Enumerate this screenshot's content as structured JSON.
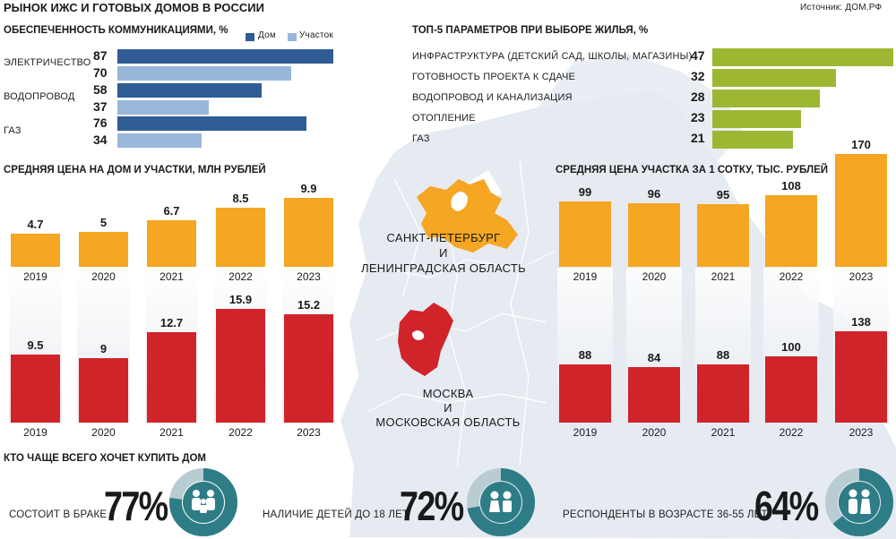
{
  "header": {
    "title": "РЫНОК ИЖС И ГОТОВЫХ ДОМОВ В РОССИИ",
    "source": "Источник: ДОМ.РФ"
  },
  "colors": {
    "house": "#2f5c94",
    "plot": "#98b7d9",
    "green": "#9cb832",
    "orange": "#f5a623",
    "red": "#d1232a",
    "teal": "#2e7d86",
    "teal_light": "#b9ccd1"
  },
  "map": {
    "spb_label_1": "САНКТ-ПЕТЕРБУРГ",
    "spb_label_2": "И",
    "spb_label_3": "ЛЕНИНГРАДСКАЯ ОБЛАСТЬ",
    "msk_label_1": "МОСКВА",
    "msk_label_2": "И",
    "msk_label_3": "МОСКОВСКАЯ ОБЛАСТЬ"
  },
  "utilities": {
    "title": "ОБЕСПЕЧЕННОСТЬ КОММУНИКАЦИЯМИ, %",
    "legend_house": "Дом",
    "legend_plot": "Участок",
    "groups": [
      {
        "label": "ЭЛЕКТРИЧЕСТВО",
        "house": 87,
        "plot": 70,
        "house_text": "87",
        "plot_text": "70"
      },
      {
        "label": "ВОДОПРОВОД",
        "house": 58,
        "plot": 37,
        "house_text": "58",
        "plot_text": "37"
      },
      {
        "label": "ГАЗ",
        "house": 76,
        "plot": 34,
        "house_text": "76",
        "plot_text": "34"
      }
    ]
  },
  "top5": {
    "title": "ТОП-5 ПАРАМЕТРОВ ПРИ ВЫБОРЕ ЖИЛЬЯ, %",
    "items": [
      {
        "label": "ИНФРАСТРУКТУРА (ДЕТСКИЙ САД, ШКОЛЫ, МАГАЗИНЫ)",
        "value": 47,
        "text": "47"
      },
      {
        "label": "ГОТОВНОСТЬ ПРОЕКТА К СДАЧЕ",
        "value": 32,
        "text": "32"
      },
      {
        "label": "ВОДОПРОВОД И КАНАЛИЗАЦИЯ",
        "value": 28,
        "text": "28"
      },
      {
        "label": "ОТОПЛЕНИЕ",
        "value": 23,
        "text": "23"
      },
      {
        "label": "ГАЗ",
        "value": 21,
        "text": "21"
      }
    ]
  },
  "price_house": {
    "title": "СРЕДНЯЯ ЦЕНА НА ДОМ И УЧАСТКИ, МЛН РУБЛЕЙ",
    "years": [
      "2019",
      "2020",
      "2021",
      "2022",
      "2023"
    ],
    "spb_values": [
      4.7,
      5,
      6.7,
      8.5,
      9.9
    ],
    "spb_texts": [
      "4.7",
      "5",
      "6.7",
      "8.5",
      "9.9"
    ],
    "msk_values": [
      9.5,
      9,
      12.7,
      15.9,
      15.2
    ],
    "msk_texts": [
      "9.5",
      "9",
      "12.7",
      "15.9",
      "15.2"
    ]
  },
  "price_plot": {
    "title": "СРЕДНЯЯ ЦЕНА УЧАСТКА ЗА 1 СОТКУ, ТЫС. РУБЛЕЙ",
    "years": [
      "2019",
      "2020",
      "2021",
      "2022",
      "2023"
    ],
    "spb_values": [
      99,
      96,
      95,
      108,
      170
    ],
    "spb_texts": [
      "99",
      "96",
      "95",
      "108",
      "170"
    ],
    "msk_values": [
      88,
      84,
      88,
      100,
      138
    ],
    "msk_texts": [
      "88",
      "84",
      "88",
      "100",
      "138"
    ]
  },
  "buyers": {
    "title": "КТО ЧАЩЕ ВСЕГО ХОЧЕТ КУПИТЬ ДОМ",
    "items": [
      {
        "label": "СОСТОИТ В БРАКЕ",
        "value": 77,
        "text": "77%",
        "icon": "family-icon"
      },
      {
        "label": "НАЛИЧИЕ ДЕТЕЙ ДО 18 ЛЕТ",
        "value": 72,
        "text": "72%",
        "icon": "children-icon"
      },
      {
        "label": "РЕСПОНДЕНТЫ В ВОЗРАСТЕ 36-55 ЛЕТ",
        "value": 64,
        "text": "64%",
        "icon": "couple-icon"
      }
    ]
  },
  "chart_data": [
    {
      "type": "bar",
      "title": "ОБЕСПЕЧЕННОСТЬ КОММУНИКАЦИЯМИ, %",
      "orientation": "horizontal",
      "categories": [
        "ЭЛЕКТРИЧЕСТВО",
        "ВОДОПРОВОД",
        "ГАЗ"
      ],
      "series": [
        {
          "name": "Дом",
          "values": [
            87,
            58,
            76
          ]
        },
        {
          "name": "Участок",
          "values": [
            70,
            37,
            34
          ]
        }
      ],
      "legend": "top-right"
    },
    {
      "type": "bar",
      "title": "ТОП-5 ПАРАМЕТРОВ ПРИ ВЫБОРЕ ЖИЛЬЯ, %",
      "orientation": "horizontal",
      "categories": [
        "ИНФРАСТРУКТУРА (ДЕТСКИЙ САД, ШКОЛЫ, МАГАЗИНЫ)",
        "ГОТОВНОСТЬ ПРОЕКТА К СДАЧЕ",
        "ВОДОПРОВОД И КАНАЛИЗАЦИЯ",
        "ОТОПЛЕНИЕ",
        "ГАЗ"
      ],
      "values": [
        47,
        32,
        28,
        23,
        21
      ]
    },
    {
      "type": "bar",
      "title": "СРЕДНЯЯ ЦЕНА НА ДОМ И УЧАСТКИ, МЛН РУБЛЕЙ",
      "categories": [
        "2019",
        "2020",
        "2021",
        "2022",
        "2023"
      ],
      "series": [
        {
          "name": "САНКТ-ПЕТЕРБУРГ И ЛЕНИНГРАДСКАЯ ОБЛАСТЬ",
          "values": [
            4.7,
            5,
            6.7,
            8.5,
            9.9
          ]
        },
        {
          "name": "МОСКВА И МОСКОВСКАЯ ОБЛАСТЬ",
          "values": [
            9.5,
            9,
            12.7,
            15.9,
            15.2
          ]
        }
      ]
    },
    {
      "type": "bar",
      "title": "СРЕДНЯЯ ЦЕНА УЧАСТКА ЗА 1 СОТКУ, ТЫС. РУБЛЕЙ",
      "categories": [
        "2019",
        "2020",
        "2021",
        "2022",
        "2023"
      ],
      "series": [
        {
          "name": "САНКТ-ПЕТЕРБУРГ И ЛЕНИНГРАДСКАЯ ОБЛАСТЬ",
          "values": [
            99,
            96,
            95,
            108,
            170
          ]
        },
        {
          "name": "МОСКВА И МОСКОВСКАЯ ОБЛАСТЬ",
          "values": [
            88,
            84,
            88,
            100,
            138
          ]
        }
      ]
    },
    {
      "type": "pie",
      "title": "КТО ЧАЩЕ ВСЕГО ХОЧЕТ КУПИТЬ ДОМ",
      "categories": [
        "СОСТОИТ В БРАКЕ",
        "НАЛИЧИЕ ДЕТЕЙ ДО 18 ЛЕТ",
        "РЕСПОНДЕНТЫ В ВОЗРАСТЕ 36-55 ЛЕТ"
      ],
      "values": [
        77,
        72,
        64
      ]
    }
  ]
}
